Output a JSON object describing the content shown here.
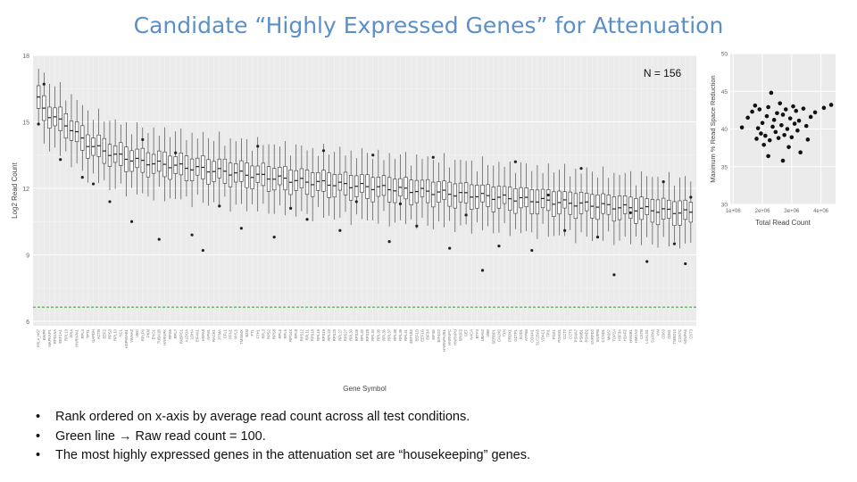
{
  "slide": {
    "title": "Candidate “Highly Expressed Genes” for Attenuation",
    "bullets": [
      {
        "text_a": "Rank ordered on x-axis by average read count across all test conditions."
      },
      {
        "text_a": "Green line ",
        "arrow": "→",
        "text_b": " Raw read count = 100."
      },
      {
        "text_a": "The most highly expressed genes in the attenuation set are “housekeeping” genes."
      }
    ]
  },
  "chart_data": [
    {
      "type": "box",
      "title": "",
      "xlabel": "Gene Symbol",
      "ylabel": "Log2 Read Count",
      "ylim": [
        5.8,
        18
      ],
      "yticks": [
        6,
        9,
        12,
        15,
        18
      ],
      "annotation": "N = 156",
      "reference_line": {
        "value": 6.64,
        "color": "#33a02c",
        "style": "dashed"
      },
      "grid": true,
      "background": "#ebebeb",
      "n_boxes": 120,
      "median_trend": [
        [
          1,
          16.0
        ],
        [
          3,
          15.3
        ],
        [
          6,
          14.9
        ],
        [
          10,
          14.0
        ],
        [
          15,
          13.5
        ],
        [
          20,
          13.2
        ],
        [
          30,
          12.9
        ],
        [
          40,
          12.6
        ],
        [
          50,
          12.3
        ],
        [
          60,
          12.1
        ],
        [
          70,
          11.9
        ],
        [
          80,
          11.7
        ],
        [
          90,
          11.5
        ],
        [
          100,
          11.3
        ],
        [
          110,
          11.1
        ],
        [
          120,
          10.9
        ]
      ],
      "box_iqr_halfwidth": 0.45,
      "whisker_extent": 1.4,
      "outliers": [
        [
          1,
          14.9
        ],
        [
          2,
          16.7
        ],
        [
          5,
          13.3
        ],
        [
          9,
          12.5
        ],
        [
          11,
          12.2
        ],
        [
          14,
          11.4
        ],
        [
          18,
          10.5
        ],
        [
          20,
          14.2
        ],
        [
          23,
          9.7
        ],
        [
          26,
          13.6
        ],
        [
          29,
          9.9
        ],
        [
          31,
          9.2
        ],
        [
          34,
          11.2
        ],
        [
          38,
          10.2
        ],
        [
          41,
          13.9
        ],
        [
          44,
          9.8
        ],
        [
          47,
          11.1
        ],
        [
          50,
          10.6
        ],
        [
          53,
          13.7
        ],
        [
          56,
          10.1
        ],
        [
          59,
          11.4
        ],
        [
          62,
          13.5
        ],
        [
          65,
          9.6
        ],
        [
          67,
          11.3
        ],
        [
          70,
          10.3
        ],
        [
          73,
          13.4
        ],
        [
          76,
          9.3
        ],
        [
          79,
          10.8
        ],
        [
          82,
          8.3
        ],
        [
          85,
          9.4
        ],
        [
          88,
          13.2
        ],
        [
          91,
          9.2
        ],
        [
          94,
          11.7
        ],
        [
          97,
          10.1
        ],
        [
          100,
          12.9
        ],
        [
          103,
          9.8
        ],
        [
          106,
          8.1
        ],
        [
          109,
          10.9
        ],
        [
          112,
          8.7
        ],
        [
          115,
          12.3
        ],
        [
          117,
          9.5
        ],
        [
          119,
          8.6
        ],
        [
          120,
          11.6
        ]
      ],
      "x_tick_labels": [
        "PPL4_H87",
        "BWPF",
        "MAPKAP1",
        "RPS15A",
        "EEF1A1",
        "RPL13",
        "PPIA",
        "HNRNPA1",
        "RPL4",
        "TPT1",
        "GAPDH",
        "ACTB",
        "EEF2",
        "RPS3",
        "RPL10",
        "NCL",
        "HSP90AB1",
        "YWHAZ",
        "UBC",
        "RPLP0",
        "PKM",
        "ENO1",
        "TUBA1B",
        "HNRNPK",
        "RPS6",
        "RPL7",
        "PABPC1",
        "ALDOA",
        "LDHA",
        "EIF4A1",
        "HSPA8",
        "NPM1",
        "RACK1",
        "PTMA",
        "CFL1",
        "PFN1",
        "MYL6",
        "TMSB4X",
        "B2M",
        "FTL",
        "FTH1",
        "RPL3",
        "RPS2",
        "RPS8",
        "RPL5",
        "RPL6",
        "RPS4X",
        "RPL8",
        "RPS12",
        "RPL11",
        "RPS18",
        "RPL19",
        "RPS19",
        "RPL23",
        "RPS23",
        "RPL27",
        "RPS27",
        "RPL30",
        "RPS28",
        "RPL32",
        "RPS29",
        "RPL34",
        "RPL35",
        "RPL36",
        "RPL37",
        "RPL38",
        "RPL39",
        "RPL41",
        "EEF1B2",
        "EEF1D",
        "EEF1G",
        "EIF3A",
        "EIF3E",
        "EIF4G2",
        "HNRNPA2B1",
        "HNRNPC",
        "HNRNPU",
        "SRSF3",
        "SET",
        "NACA",
        "BTF3",
        "UBA52",
        "UBB",
        "SERBP1",
        "CALM2",
        "TXN",
        "PRDX1",
        "GSTP1",
        "SOD1",
        "ATP5B",
        "COX4I1",
        "SLC25A5",
        "VDAC1",
        "TPI1",
        "PGK1",
        "PGAM1",
        "CCT2",
        "CCT5",
        "PSMA7",
        "PSMB1",
        "PSMD2",
        "SNRPD2",
        "SNRPB",
        "CCND1",
        "MKI67",
        "TOP2A",
        "H3F3A",
        "H2AFZ",
        "HMGB1",
        "HMGN2",
        "CSTB",
        "LGALS1",
        "S100A6",
        "VIM",
        "CD63",
        "CD81",
        "TMED10",
        "COX7C",
        "NDUFA4",
        "CST3"
      ]
    },
    {
      "type": "scatter",
      "title": "",
      "xlabel": "Total Read Count",
      "ylabel": "Maximum % Read Space Reduction",
      "xlim": [
        900000,
        4500000
      ],
      "ylim": [
        30,
        50
      ],
      "xticks": [
        1000000,
        2000000,
        3000000,
        4000000
      ],
      "xtick_labels": [
        "1e+06",
        "2e+06",
        "3e+06",
        "4e+06"
      ],
      "yticks": [
        30,
        35,
        40,
        45,
        50
      ],
      "grid": true,
      "background": "#ebebeb",
      "points": [
        [
          1300000,
          40.2
        ],
        [
          1500000,
          41.5
        ],
        [
          1650000,
          42.3
        ],
        [
          1750000,
          43.1
        ],
        [
          1800000,
          38.7
        ],
        [
          1900000,
          42.6
        ],
        [
          1950000,
          39.4
        ],
        [
          2000000,
          40.8
        ],
        [
          2050000,
          37.9
        ],
        [
          2100000,
          39.1
        ],
        [
          2150000,
          41.7
        ],
        [
          2200000,
          42.9
        ],
        [
          2250000,
          38.5
        ],
        [
          2300000,
          44.8
        ],
        [
          2350000,
          40.3
        ],
        [
          2400000,
          41.2
        ],
        [
          2450000,
          39.6
        ],
        [
          2500000,
          42.1
        ],
        [
          2550000,
          38.8
        ],
        [
          2600000,
          43.4
        ],
        [
          2650000,
          40.5
        ],
        [
          2700000,
          41.9
        ],
        [
          2750000,
          39.2
        ],
        [
          2800000,
          42.6
        ],
        [
          2850000,
          40.0
        ],
        [
          2900000,
          37.6
        ],
        [
          2950000,
          41.4
        ],
        [
          3000000,
          38.9
        ],
        [
          3050000,
          43.0
        ],
        [
          3100000,
          40.7
        ],
        [
          3150000,
          42.4
        ],
        [
          3200000,
          39.8
        ],
        [
          3250000,
          41.1
        ],
        [
          3300000,
          36.9
        ],
        [
          3400000,
          42.7
        ],
        [
          3500000,
          40.4
        ],
        [
          3550000,
          38.6
        ],
        [
          3650000,
          41.6
        ],
        [
          3800000,
          42.2
        ],
        [
          4100000,
          42.8
        ],
        [
          4350000,
          43.2
        ],
        [
          2200000,
          36.4
        ],
        [
          2700000,
          35.8
        ],
        [
          1850000,
          40.1
        ]
      ]
    }
  ]
}
